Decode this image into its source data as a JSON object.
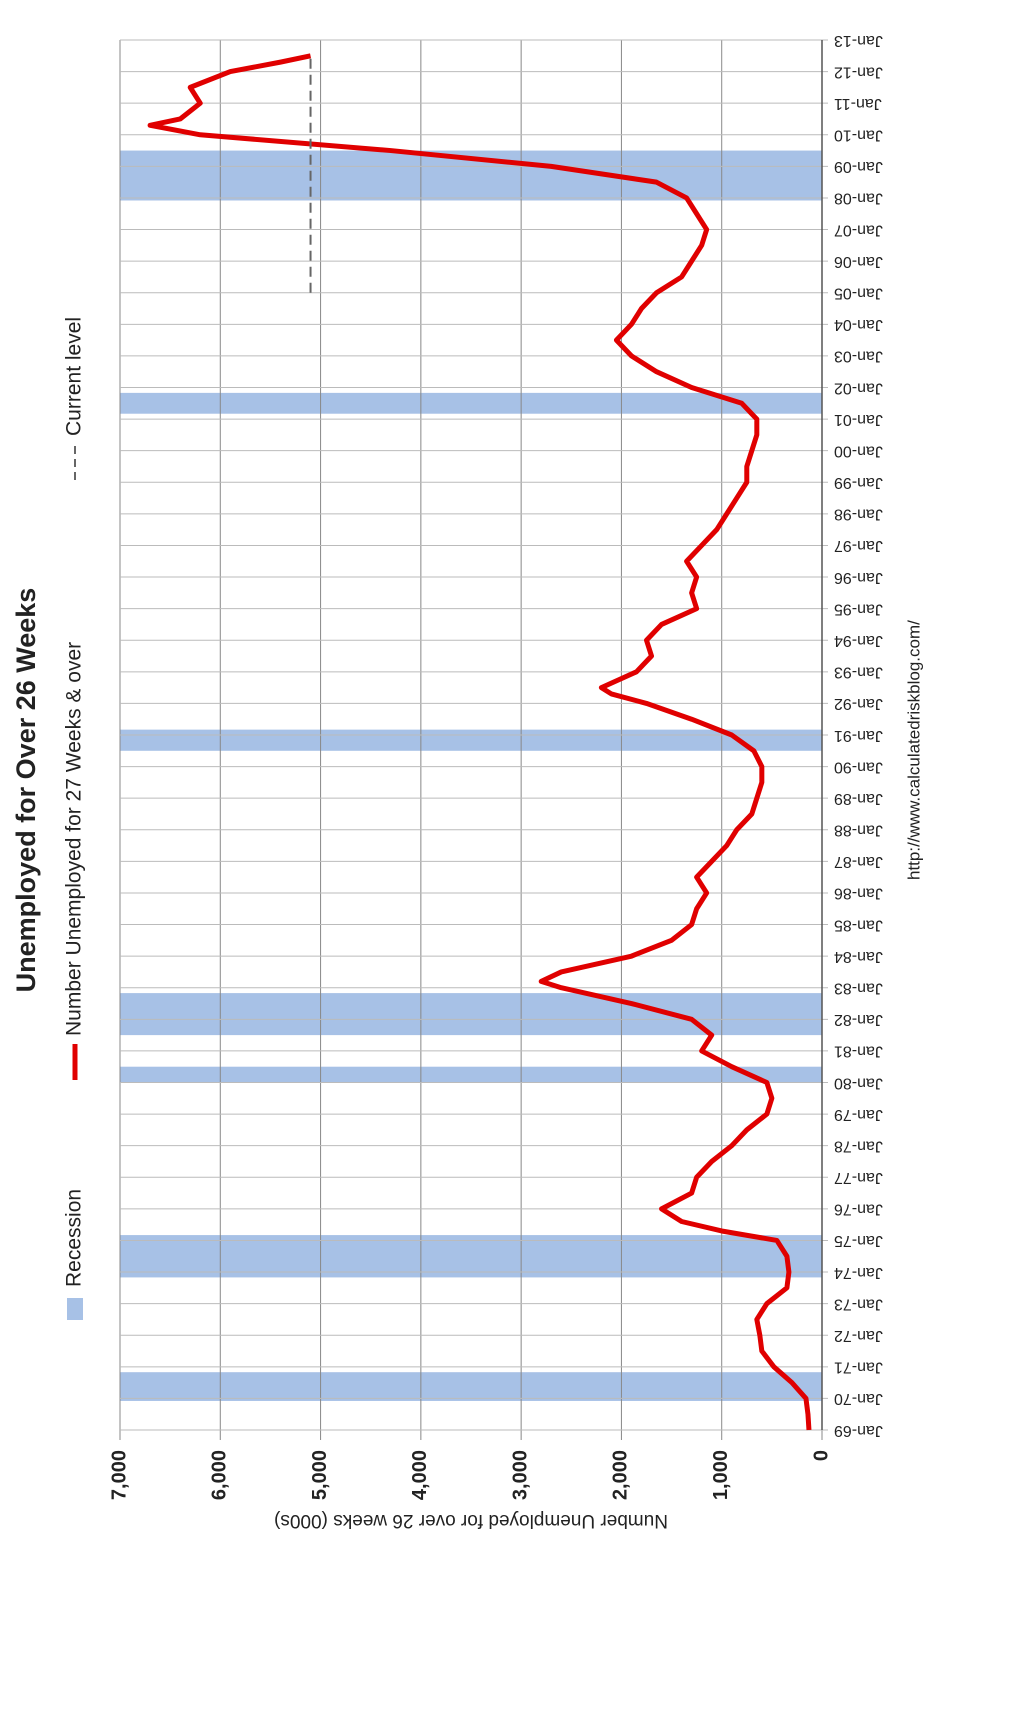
{
  "chart_data": {
    "type": "line",
    "title": "Unemployed for Over 26 Weeks",
    "y_label": "Number Unemployed for over 26 weeks (000s)",
    "source": "http://www.calculatedriskblog.com/",
    "xlim": [
      1969,
      2013
    ],
    "xticks": [
      {
        "value": 1969,
        "label": "Jan-69"
      },
      {
        "value": 1970,
        "label": "Jan-70"
      },
      {
        "value": 1971,
        "label": "Jan-71"
      },
      {
        "value": 1972,
        "label": "Jan-72"
      },
      {
        "value": 1973,
        "label": "Jan-73"
      },
      {
        "value": 1974,
        "label": "Jan-74"
      },
      {
        "value": 1975,
        "label": "Jan-75"
      },
      {
        "value": 1976,
        "label": "Jan-76"
      },
      {
        "value": 1977,
        "label": "Jan-77"
      },
      {
        "value": 1978,
        "label": "Jan-78"
      },
      {
        "value": 1979,
        "label": "Jan-79"
      },
      {
        "value": 1980,
        "label": "Jan-80"
      },
      {
        "value": 1981,
        "label": "Jan-81"
      },
      {
        "value": 1982,
        "label": "Jan-82"
      },
      {
        "value": 1983,
        "label": "Jan-83"
      },
      {
        "value": 1984,
        "label": "Jan-84"
      },
      {
        "value": 1985,
        "label": "Jan-85"
      },
      {
        "value": 1986,
        "label": "Jan-86"
      },
      {
        "value": 1987,
        "label": "Jan-87"
      },
      {
        "value": 1988,
        "label": "Jan-88"
      },
      {
        "value": 1989,
        "label": "Jan-89"
      },
      {
        "value": 1990,
        "label": "Jan-90"
      },
      {
        "value": 1991,
        "label": "Jan-91"
      },
      {
        "value": 1992,
        "label": "Jan-92"
      },
      {
        "value": 1993,
        "label": "Jan-93"
      },
      {
        "value": 1994,
        "label": "Jan-94"
      },
      {
        "value": 1995,
        "label": "Jan-95"
      },
      {
        "value": 1996,
        "label": "Jan-96"
      },
      {
        "value": 1997,
        "label": "Jan-97"
      },
      {
        "value": 1998,
        "label": "Jan-98"
      },
      {
        "value": 1999,
        "label": "Jan-99"
      },
      {
        "value": 2000,
        "label": "Jan-00"
      },
      {
        "value": 2001,
        "label": "Jan-01"
      },
      {
        "value": 2002,
        "label": "Jan-02"
      },
      {
        "value": 2003,
        "label": "Jan-03"
      },
      {
        "value": 2004,
        "label": "Jan-04"
      },
      {
        "value": 2005,
        "label": "Jan-05"
      },
      {
        "value": 2006,
        "label": "Jan-06"
      },
      {
        "value": 2007,
        "label": "Jan-07"
      },
      {
        "value": 2008,
        "label": "Jan-08"
      },
      {
        "value": 2009,
        "label": "Jan-09"
      },
      {
        "value": 2010,
        "label": "Jan-10"
      },
      {
        "value": 2011,
        "label": "Jan-11"
      },
      {
        "value": 2012,
        "label": "Jan-12"
      },
      {
        "value": 2013,
        "label": "Jan-13"
      }
    ],
    "ylim": [
      0,
      7000
    ],
    "yticks": [
      0,
      {
        "value": 1000,
        "label": "1,000"
      },
      {
        "value": 2000,
        "label": "2,000"
      },
      {
        "value": 3000,
        "label": "3,000"
      },
      {
        "value": 4000,
        "label": "4,000"
      },
      {
        "value": 5000,
        "label": "5,000"
      },
      {
        "value": 6000,
        "label": "6,000"
      },
      {
        "value": 7000,
        "label": "7,000"
      }
    ],
    "grid": true,
    "recession_name": "Recession",
    "recession_color": "#a7c1e6",
    "recessions": [
      [
        1969.92,
        1970.83
      ],
      [
        1973.83,
        1975.17
      ],
      [
        1980.0,
        1980.5
      ],
      [
        1981.5,
        1982.83
      ],
      [
        1990.5,
        1991.17
      ],
      [
        2001.17,
        2001.83
      ],
      [
        2007.92,
        2009.5
      ]
    ],
    "series": [
      {
        "name": "Number Unemployed for 27 Weeks & over",
        "color": "#e00000",
        "x": [
          1969,
          1969.5,
          1970,
          1970.5,
          1971,
          1971.5,
          1972,
          1972.5,
          1973,
          1973.5,
          1974,
          1974.5,
          1975,
          1975.3,
          1975.6,
          1976,
          1976.5,
          1977,
          1977.5,
          1978,
          1978.5,
          1979,
          1979.5,
          1980,
          1980.5,
          1981,
          1981.5,
          1982,
          1982.5,
          1983,
          1983.2,
          1983.5,
          1984,
          1984.5,
          1985,
          1985.5,
          1986,
          1986.5,
          1987,
          1987.5,
          1988,
          1988.5,
          1989,
          1989.5,
          1990,
          1990.5,
          1991,
          1991.5,
          1992,
          1992.3,
          1992.5,
          1993,
          1993.5,
          1994,
          1994.5,
          1995,
          1995.5,
          1996,
          1996.5,
          1997,
          1997.5,
          1998,
          1998.5,
          1999,
          1999.5,
          2000,
          2000.5,
          2001,
          2001.5,
          2002,
          2002.5,
          2003,
          2003.5,
          2004,
          2004.5,
          2005,
          2005.5,
          2006,
          2006.5,
          2007,
          2007.5,
          2008,
          2008.5,
          2009,
          2009.5,
          2010,
          2010.3,
          2010.5,
          2011,
          2011.5,
          2012,
          2012.3,
          2012.5
        ],
        "values": [
          130,
          140,
          160,
          300,
          480,
          600,
          620,
          650,
          550,
          350,
          330,
          350,
          450,
          1000,
          1400,
          1600,
          1300,
          1250,
          1100,
          900,
          750,
          550,
          500,
          550,
          900,
          1200,
          1100,
          1300,
          1900,
          2600,
          2800,
          2600,
          1900,
          1500,
          1300,
          1250,
          1150,
          1250,
          1100,
          950,
          850,
          700,
          650,
          600,
          600,
          680,
          900,
          1300,
          1750,
          2100,
          2200,
          1850,
          1700,
          1750,
          1600,
          1250,
          1300,
          1250,
          1350,
          1200,
          1050,
          950,
          850,
          750,
          750,
          700,
          650,
          650,
          800,
          1300,
          1650,
          1900,
          2050,
          1900,
          1800,
          1650,
          1400,
          1300,
          1200,
          1150,
          1250,
          1350,
          1650,
          2700,
          4300,
          6200,
          6700,
          6400,
          6200,
          6300,
          5900,
          5400,
          5100
        ]
      },
      {
        "name": "Current level",
        "color": "#666666",
        "dashed": true,
        "x": [
          2005,
          2012.5
        ],
        "values": [
          5100,
          5100
        ]
      }
    ]
  }
}
